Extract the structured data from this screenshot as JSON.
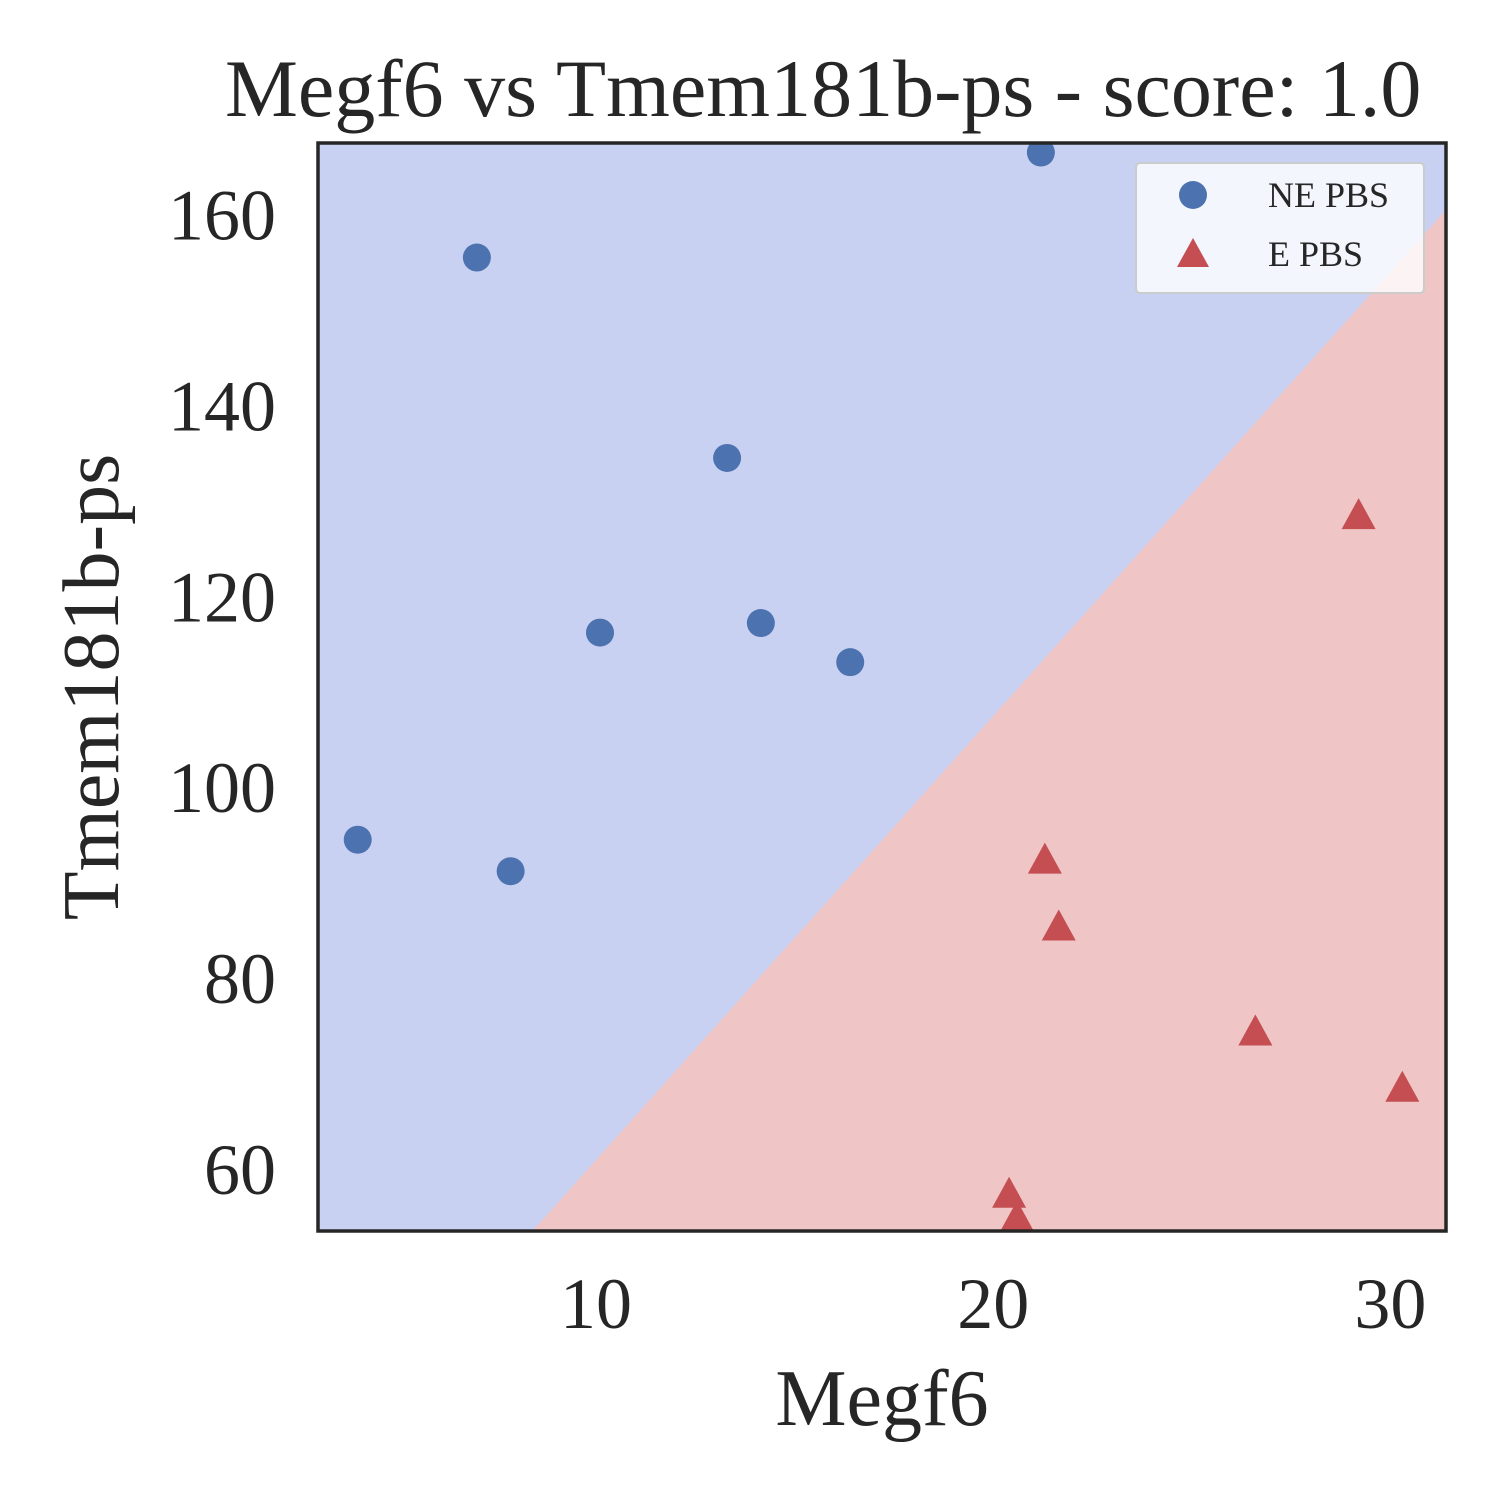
{
  "chart_data": {
    "type": "scatter",
    "title": "Megf6 vs Tmem181b-ps - score: 1.0",
    "xlabel": "Megf6",
    "ylabel": "Tmem181b-ps",
    "xlim": [
      3.0,
      31.4
    ],
    "ylim": [
      53.5,
      167.5
    ],
    "xticks": [
      10,
      20,
      30
    ],
    "yticks": [
      60,
      80,
      100,
      120,
      140,
      160
    ],
    "grid": false,
    "legend_position": "top-right",
    "decision_boundary": {
      "note": "linear classifier regions",
      "line": [
        [
          8.4,
          53.5
        ],
        [
          31.4,
          160.5
        ]
      ],
      "upper_region_class": "NE PBS",
      "lower_region_class": "E PBS"
    },
    "series": [
      {
        "name": "NE PBS",
        "marker": "circle",
        "color": "#4c72b0",
        "points": [
          [
            4.0,
            94.5
          ],
          [
            7.0,
            155.5
          ],
          [
            7.85,
            91.2
          ],
          [
            10.1,
            116.2
          ],
          [
            13.3,
            134.5
          ],
          [
            14.15,
            117.2
          ],
          [
            16.4,
            113.1
          ],
          [
            21.2,
            166.5
          ]
        ]
      },
      {
        "name": "E PBS",
        "marker": "triangle",
        "color": "#c44e52",
        "points": [
          [
            21.3,
            92.2
          ],
          [
            21.65,
            85.2
          ],
          [
            20.4,
            57.2
          ],
          [
            20.6,
            54.7
          ],
          [
            26.6,
            74.2
          ],
          [
            29.2,
            128.3
          ],
          [
            30.3,
            68.3
          ]
        ]
      }
    ],
    "region_colors": {
      "upper": "#c9d1f2",
      "lower": "#efc5c5",
      "frame": "#262626"
    }
  }
}
